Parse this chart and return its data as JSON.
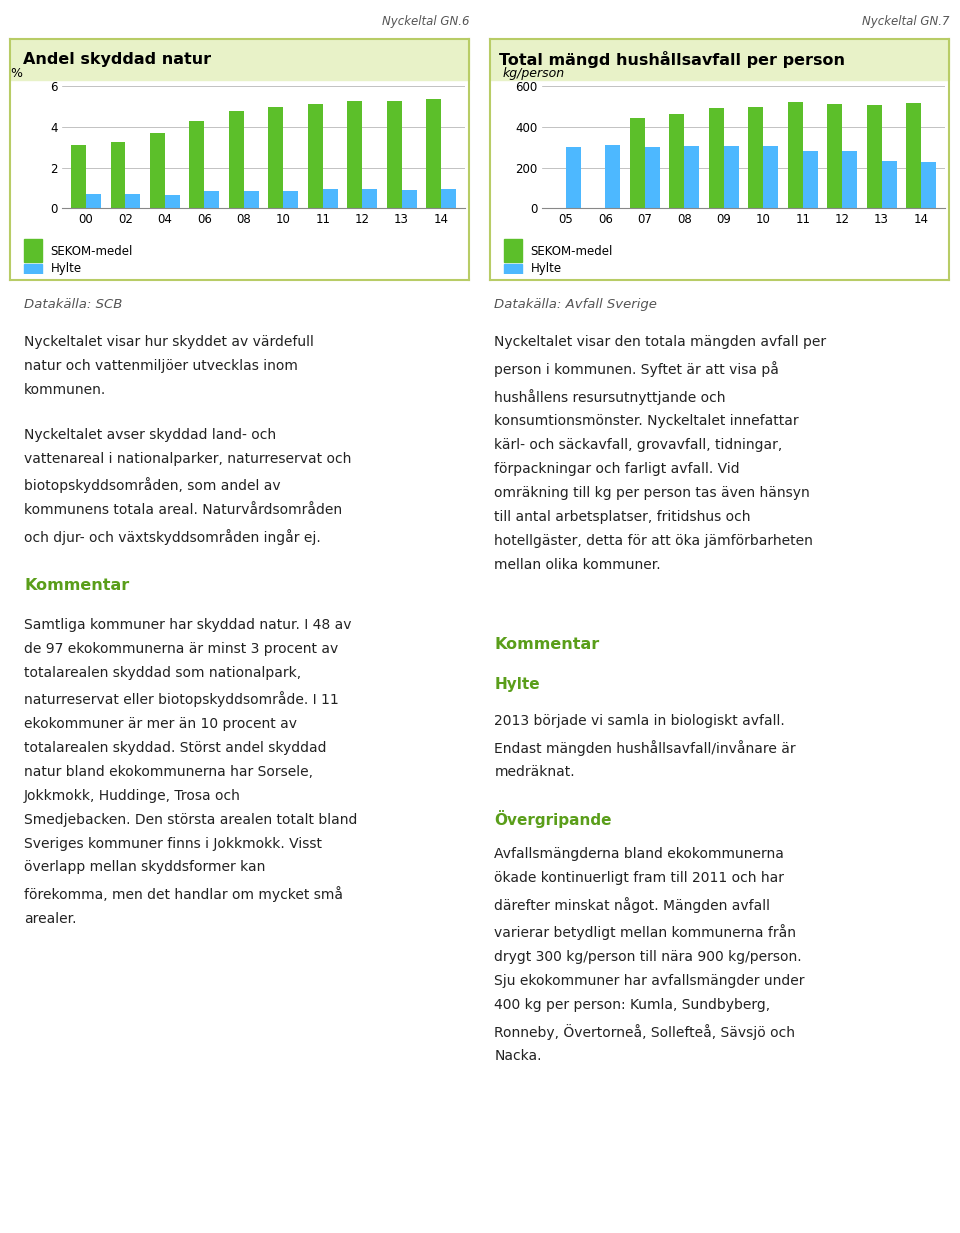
{
  "chart1": {
    "title": "Andel skyddad natur",
    "nyckeltal": "Nyckeltal GN.6",
    "ylabel": "%",
    "categories": [
      "00",
      "02",
      "04",
      "06",
      "08",
      "10",
      "11",
      "12",
      "13",
      "14"
    ],
    "sekom": [
      3.1,
      3.25,
      3.7,
      4.3,
      4.8,
      5.0,
      5.15,
      5.3,
      5.3,
      5.4
    ],
    "hylte": [
      0.7,
      0.7,
      0.65,
      0.85,
      0.85,
      0.85,
      0.95,
      0.95,
      0.9,
      0.95
    ],
    "ylim": [
      0,
      6
    ],
    "yticks": [
      0,
      2,
      4,
      6
    ]
  },
  "chart2": {
    "title": "Total mängd hushållsavfall per person",
    "nyckeltal": "Nyckeltal GN.7",
    "ylabel": "kg/person",
    "categories": [
      "05",
      "06",
      "07",
      "08",
      "09",
      "10",
      "11",
      "12",
      "13",
      "14"
    ],
    "sekom": [
      null,
      null,
      445,
      465,
      495,
      500,
      525,
      515,
      510,
      520
    ],
    "hylte": [
      300,
      310,
      300,
      305,
      305,
      305,
      280,
      280,
      235,
      228
    ],
    "ylim": [
      0,
      600
    ],
    "yticks": [
      0,
      200,
      400,
      600
    ]
  },
  "sekom_color": "#5cbf2a",
  "hylte_color": "#4db8ff",
  "title_bg": "#e8f2c8",
  "border_color": "#b8cc66",
  "green_header_color": "#5a9e1a",
  "datakalla_color": "#555555",
  "body_text_color": "#222222",
  "nyckeltal_color": "#555555"
}
